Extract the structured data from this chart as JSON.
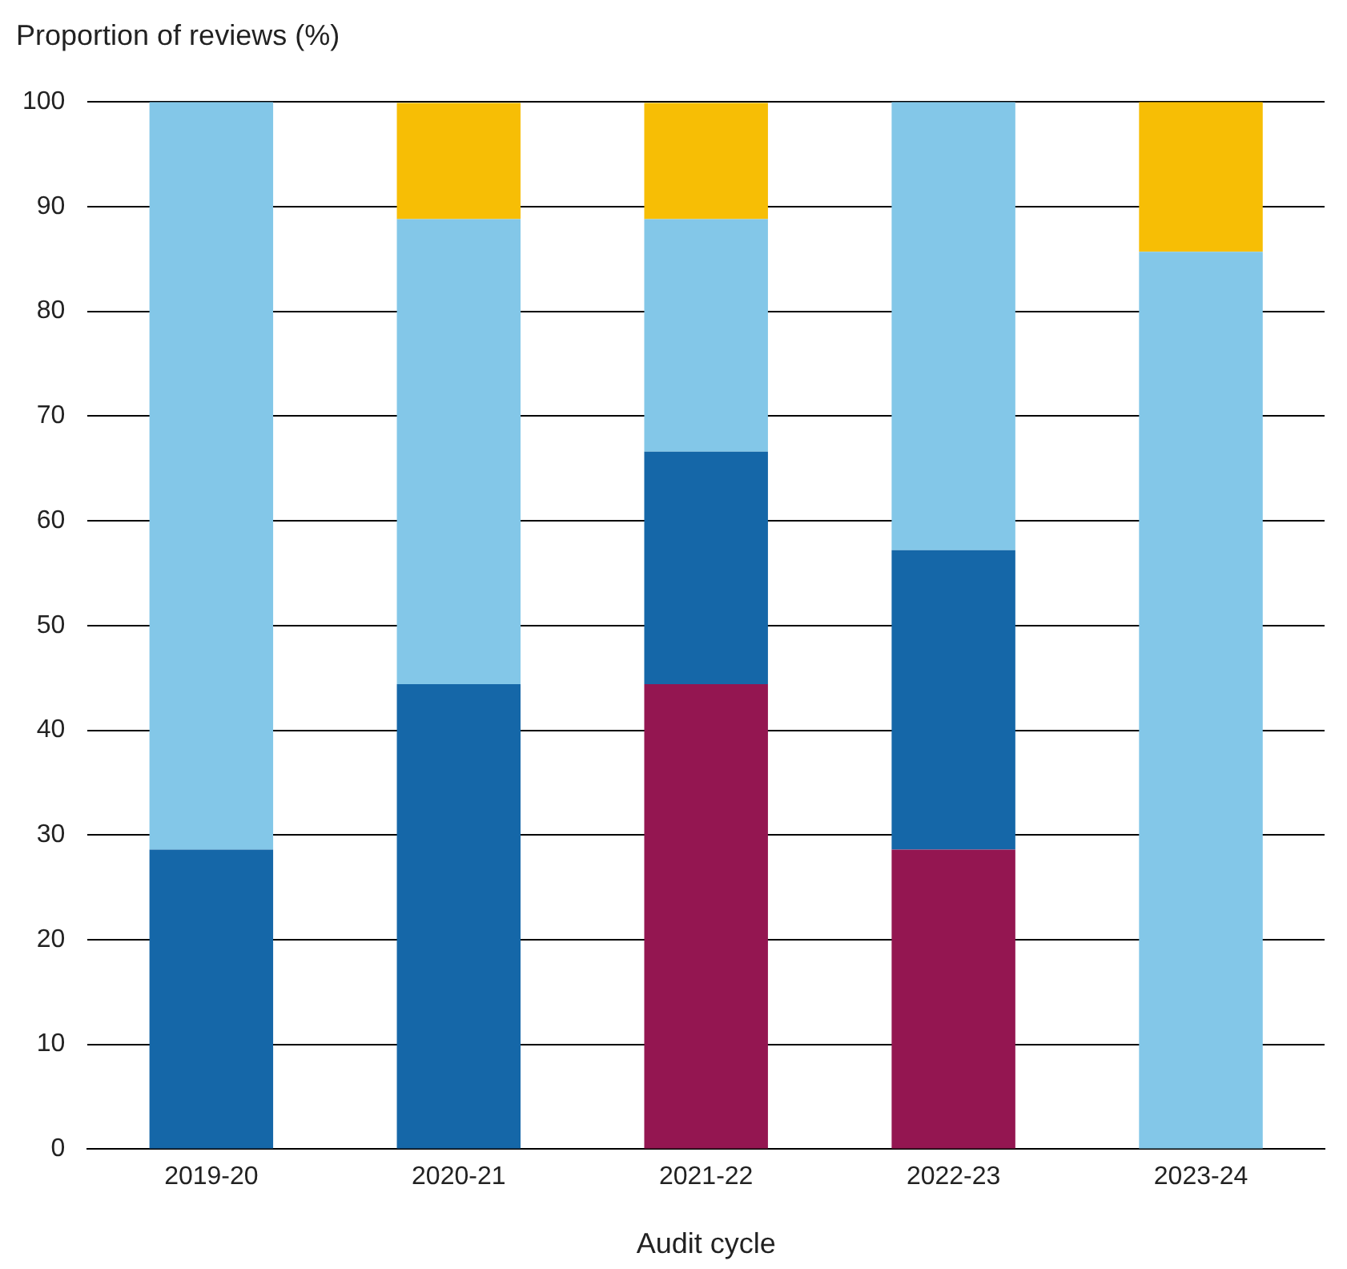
{
  "chart_data": {
    "type": "bar",
    "stacked": true,
    "ylabel": "Proportion of reviews (%)",
    "xlabel": "Audit cycle",
    "categories": [
      "2019-20",
      "2020-21",
      "2021-22",
      "2022-23",
      "2023-24"
    ],
    "series": [
      {
        "color": "#941651",
        "values": [
          0,
          0,
          44.4,
          28.6,
          0
        ]
      },
      {
        "color": "#1567a8",
        "values": [
          28.6,
          44.4,
          22.2,
          28.6,
          0
        ]
      },
      {
        "color": "#83c7e8",
        "values": [
          71.4,
          44.4,
          22.2,
          42.8,
          85.7
        ]
      },
      {
        "color": "#f7be05",
        "values": [
          0,
          11.1,
          11.1,
          0,
          14.3
        ]
      }
    ],
    "ylim": [
      0,
      100
    ],
    "yticks": [
      0,
      10,
      20,
      30,
      40,
      50,
      60,
      70,
      80,
      90,
      100
    ],
    "grid": "y",
    "legend": false
  }
}
